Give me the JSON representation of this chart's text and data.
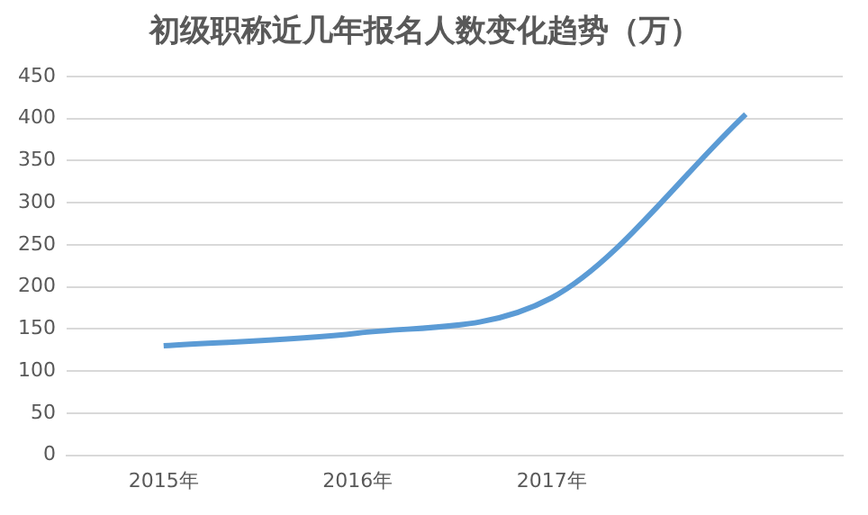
{
  "chart_data": {
    "type": "line",
    "title": "初级职称近几年报名人数变化趋势（万）",
    "categories": [
      "2015年",
      "2016年",
      "2017年",
      null
    ],
    "series": [
      {
        "color": "#5b9bd5",
        "values": [
          130,
          145,
          187,
          405
        ]
      }
    ],
    "ylim": [
      0,
      450
    ],
    "yticks": [
      0,
      50,
      100,
      150,
      200,
      250,
      300,
      350,
      400,
      450
    ],
    "grid": "y",
    "legend": false,
    "marker": "none",
    "line_style": "solid"
  }
}
